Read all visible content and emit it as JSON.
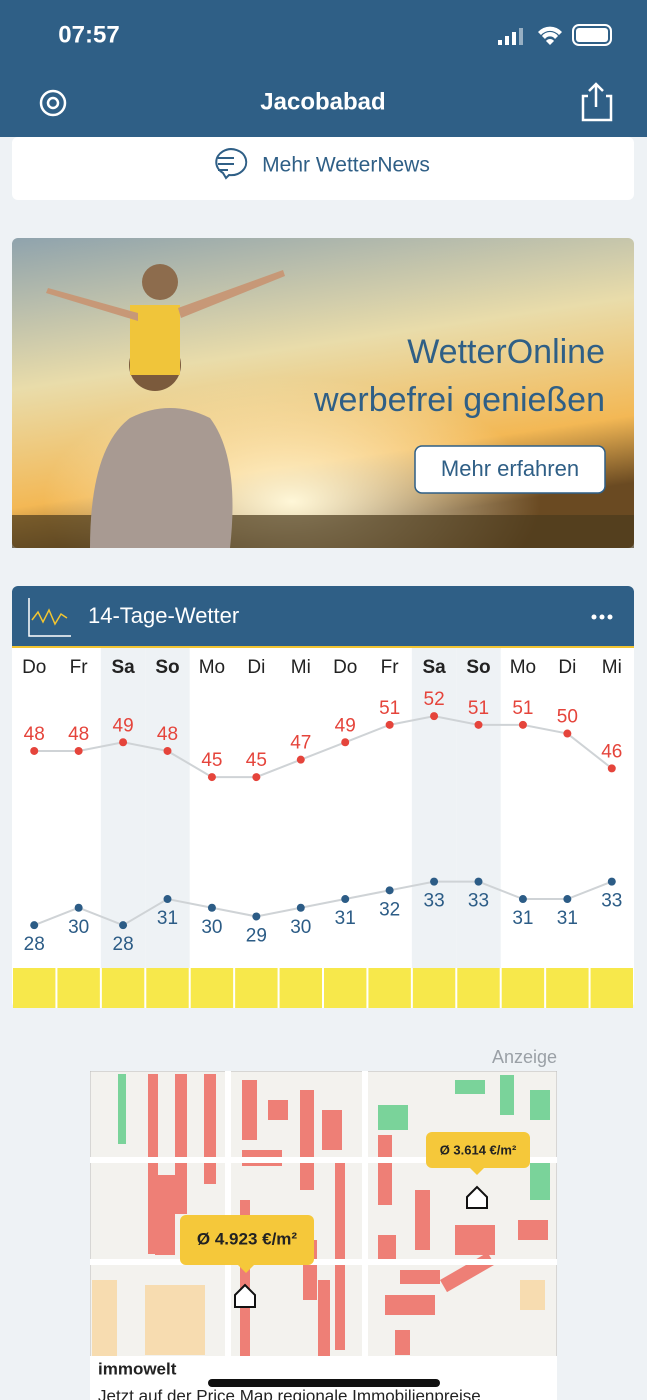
{
  "status_bar": {
    "time": "07:57"
  },
  "header": {
    "title": "Jacobabad"
  },
  "news_link": "Mehr WetterNews",
  "promo": {
    "line1": "WetterOnline",
    "line2": "werbefrei genießen",
    "button": "Mehr erfahren"
  },
  "forecast_card": {
    "title": "14-Tage-Wetter"
  },
  "chart_data": {
    "type": "line",
    "categories": [
      "Do",
      "Fr",
      "Sa",
      "So",
      "Mo",
      "Di",
      "Mi",
      "Do",
      "Fr",
      "Sa",
      "So",
      "Mo",
      "Di",
      "Mi"
    ],
    "weekend_columns": [
      2,
      3,
      9,
      10
    ],
    "ylim": [
      24,
      55
    ],
    "series": [
      {
        "name": "max",
        "color": "#e5443b",
        "values": [
          48,
          48,
          49,
          48,
          45,
          45,
          47,
          49,
          51,
          52,
          51,
          51,
          50,
          46
        ]
      },
      {
        "name": "min",
        "color": "#2c5c86",
        "values": [
          28,
          30,
          28,
          31,
          30,
          29,
          30,
          31,
          32,
          33,
          33,
          31,
          31,
          33
        ]
      }
    ]
  },
  "ad": {
    "marker": "Anzeige",
    "price_1": "Ø 4.923 €/m²",
    "price_2": "Ø 3.614 €/m²",
    "brand": "immowelt",
    "text": "Jetzt auf der Price Map regionale Immobilienpreise"
  }
}
